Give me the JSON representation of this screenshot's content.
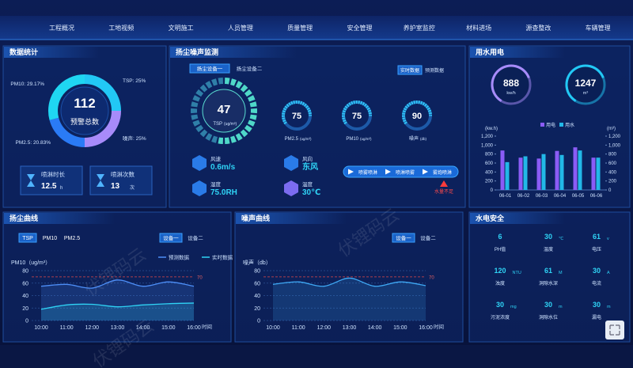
{
  "nav": [
    "工程概况",
    "工地视频",
    "文明施工",
    "人员管理",
    "质量管理",
    "安全管理",
    "养护室监控",
    "材料进场",
    "源查整改",
    "车辆管理"
  ],
  "watermark": "伏锂码云",
  "data_stats": {
    "title": "数据统计",
    "donut": {
      "labels": [
        "TSP: 25%",
        "噪声: 25%",
        "PM2.5: 20.83%",
        "PM10: 29.17%"
      ],
      "values": [
        25,
        25,
        20.83,
        29.17
      ],
      "colors": [
        "#22c8f5",
        "#a78bfa",
        "#2a7bf6",
        "#1fd6f2"
      ]
    },
    "total": 112,
    "total_label": "预警总数",
    "stats": [
      {
        "label": "喷淋时长",
        "value": 12.5,
        "unit": "h"
      },
      {
        "label": "喷淋次数",
        "value": 13,
        "unit": "次"
      }
    ]
  },
  "dust_monitor": {
    "title": "扬尘噪声监测",
    "devices": [
      "扬尘设备一",
      "扬尘设备二"
    ],
    "modes": [
      "实时数据",
      "预测数据"
    ],
    "main": {
      "value": 47,
      "label": "TSP",
      "unit": "(ug/m³)"
    },
    "gauges": [
      {
        "value": 75,
        "label": "PM2.5",
        "unit": "(ug/m³)"
      },
      {
        "value": 75,
        "label": "PM10",
        "unit": "(ug/m³)"
      },
      {
        "value": 90,
        "label": "噪声",
        "unit": "(db)"
      }
    ],
    "env": [
      {
        "label": "风速",
        "value": "0.6m/s"
      },
      {
        "label": "风向",
        "value": "东风"
      },
      {
        "label": "湿度",
        "value": "75.0RH"
      },
      {
        "label": "温度",
        "value": "30℃"
      }
    ],
    "buttons": [
      "喷雾喷淋",
      "喷淋喷雾",
      "雾炮喷淋"
    ],
    "alert": "水量不足"
  },
  "water_power": {
    "title": "用水用电",
    "meters": [
      {
        "value": 888,
        "unit": "kw/h",
        "color": "#a78bfa"
      },
      {
        "value": 1247,
        "unit": "m³",
        "color": "#22c8f5"
      }
    ],
    "chart": {
      "type": "bar",
      "ylabel": "(kw.h)",
      "y2label": "(m³)",
      "categories": [
        "06-01",
        "06-02",
        "06-03",
        "06-04",
        "06-05",
        "06-06"
      ],
      "series": [
        {
          "name": "用电",
          "color": "#8b5cf6",
          "values": [
            880,
            720,
            700,
            870,
            950,
            720
          ]
        },
        {
          "name": "用水",
          "color": "#22b8e8",
          "axis": "y2",
          "values": [
            620,
            750,
            800,
            780,
            880,
            720
          ]
        }
      ],
      "ylim": [
        0,
        1200
      ],
      "yticks": [
        0,
        200,
        400,
        600,
        800,
        {
          "value": 1000,
          "label": "1,000"
        },
        {
          "value": 1200,
          "label": "1,200"
        }
      ],
      "y2lim": [
        0,
        1200
      ],
      "y2ticks": [
        0,
        200,
        400,
        600,
        800,
        {
          "value": 1000,
          "label": "1,000"
        },
        {
          "value": 1200,
          "label": "1,200"
        }
      ]
    }
  },
  "dust_curve": {
    "title": "扬尘曲线",
    "pollutants": [
      "TSP",
      "PM10",
      "PM2.5"
    ],
    "devices": [
      "设备一",
      "设备二"
    ],
    "chart": {
      "type": "line",
      "ylabel": "PM10（ug/m³）",
      "xlabel": "时间",
      "categories": [
        "10:00",
        "11:00",
        "12:00",
        "13:00",
        "14:00",
        "15:00",
        "16:00"
      ],
      "ylim": [
        0,
        80
      ],
      "yticks": [
        0,
        20,
        40,
        60,
        80
      ],
      "grid": true,
      "threshold": 70,
      "series": [
        {
          "name": "预测数据",
          "color": "#4d8ef7",
          "values": [
            55,
            58,
            52,
            65,
            55,
            62,
            55
          ]
        },
        {
          "name": "实时数据",
          "color": "#2fd3f5",
          "values": [
            18,
            25,
            26,
            22,
            25,
            27,
            28
          ]
        }
      ]
    }
  },
  "noise_curve": {
    "title": "噪声曲线",
    "devices": [
      "设备一",
      "设备二"
    ],
    "chart": {
      "type": "line",
      "ylabel": "噪声（db）",
      "xlabel": "时间",
      "categories": [
        "10:00",
        "11:00",
        "12:00",
        "13:00",
        "14:00",
        "15:00",
        "16:00"
      ],
      "ylim": [
        0,
        80
      ],
      "yticks": [
        0,
        20,
        40,
        60,
        80
      ],
      "grid": true,
      "threshold": 70,
      "series": [
        {
          "color": "#3fa9f5",
          "values": [
            58,
            62,
            55,
            68,
            55,
            62,
            56
          ]
        }
      ]
    }
  },
  "safety": {
    "title": "水电安全",
    "items": [
      {
        "value": 6,
        "label": "PH值"
      },
      {
        "value": 30,
        "unit": "℃",
        "label": "温度"
      },
      {
        "value": 61,
        "unit": "v",
        "label": "电压"
      },
      {
        "value": 120,
        "unit": "NTU",
        "label": "浊度"
      },
      {
        "value": 61,
        "unit": "M",
        "label": "洞隙水深"
      },
      {
        "value": 30,
        "unit": "A",
        "label": "电流"
      },
      {
        "value": 30,
        "unit": "mg",
        "label": "污泥浓度"
      },
      {
        "value": 30,
        "unit": "m",
        "label": "洞隙水位"
      },
      {
        "value": 30,
        "unit": "m",
        "label": "漏电"
      }
    ]
  }
}
